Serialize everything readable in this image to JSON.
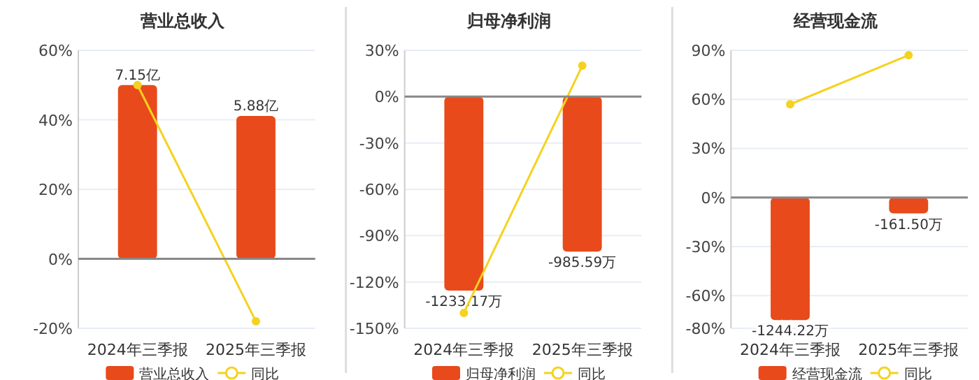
{
  "chart_data": [
    {
      "type": "bar",
      "title": "营业总收入",
      "categories": [
        "2024年三季报",
        "2025年三季报"
      ],
      "series": [
        {
          "name": "营业总收入",
          "type": "bar",
          "axis": "y2",
          "color": "#e84a1b",
          "values": [
            7.15,
            5.88
          ],
          "value_labels": [
            "7.15亿",
            "5.88亿"
          ]
        },
        {
          "name": "同比",
          "type": "line",
          "color": "#f5d21f",
          "values": [
            50,
            -18
          ],
          "marker": "circle"
        }
      ],
      "ylim": [
        -20,
        60
      ],
      "yticks": [
        {
          "value": -20,
          "label": "-20%"
        },
        {
          "value": 0,
          "label": "0%"
        },
        {
          "value": 20,
          "label": "20%"
        },
        {
          "value": 40,
          "label": "40%"
        },
        {
          "value": 60,
          "label": "60%"
        }
      ],
      "y2lim": [
        -2.86,
        8.58
      ],
      "grid": "y",
      "legend": "bottom",
      "tick_labels": "xy"
    },
    {
      "type": "bar",
      "title": "归母净利润",
      "categories": [
        "2024年三季报",
        "2025年三季报"
      ],
      "series": [
        {
          "name": "归母净利润",
          "type": "bar",
          "axis": "y2",
          "color": "#e84a1b",
          "values": [
            -1233.17,
            -985.59
          ],
          "value_labels": [
            "-1233.17万",
            "-985.59万"
          ]
        },
        {
          "name": "同比",
          "type": "line",
          "color": "#f5d21f",
          "values": [
            -140,
            20
          ],
          "marker": "circle"
        }
      ],
      "ylim": [
        -150,
        30
      ],
      "yticks": [
        {
          "value": -150,
          "label": "-150%"
        },
        {
          "value": -120,
          "label": "-120%"
        },
        {
          "value": -90,
          "label": "-90%"
        },
        {
          "value": -60,
          "label": "-60%"
        },
        {
          "value": -30,
          "label": "-30%"
        },
        {
          "value": 0,
          "label": "0%"
        },
        {
          "value": 30,
          "label": "30%"
        }
      ],
      "y2lim": [
        -1473,
        295
      ],
      "grid": "y",
      "legend": "bottom",
      "tick_labels": "xy"
    },
    {
      "type": "bar",
      "title": "经营现金流",
      "categories": [
        "2024年三季报",
        "2025年三季报"
      ],
      "series": [
        {
          "name": "经营现金流",
          "type": "bar",
          "axis": "y2",
          "color": "#e84a1b",
          "values": [
            -1244.22,
            -161.5
          ],
          "value_labels": [
            "-1244.22万",
            "-161.50万"
          ]
        },
        {
          "name": "同比",
          "type": "line",
          "color": "#f5d21f",
          "values": [
            57,
            87
          ],
          "marker": "circle"
        }
      ],
      "ylim": [
        -80,
        90
      ],
      "yticks": [
        {
          "value": -80,
          "label": "-80%"
        },
        {
          "value": -60,
          "label": "-60%"
        },
        {
          "value": -30,
          "label": "-30%"
        },
        {
          "value": 0,
          "label": "0%"
        },
        {
          "value": 30,
          "label": "30%"
        },
        {
          "value": 60,
          "label": "60%"
        },
        {
          "value": 90,
          "label": "90%"
        }
      ],
      "y2lim": [
        -1327,
        1493
      ],
      "grid": "y",
      "legend": "bottom",
      "tick_labels": "xy"
    }
  ]
}
